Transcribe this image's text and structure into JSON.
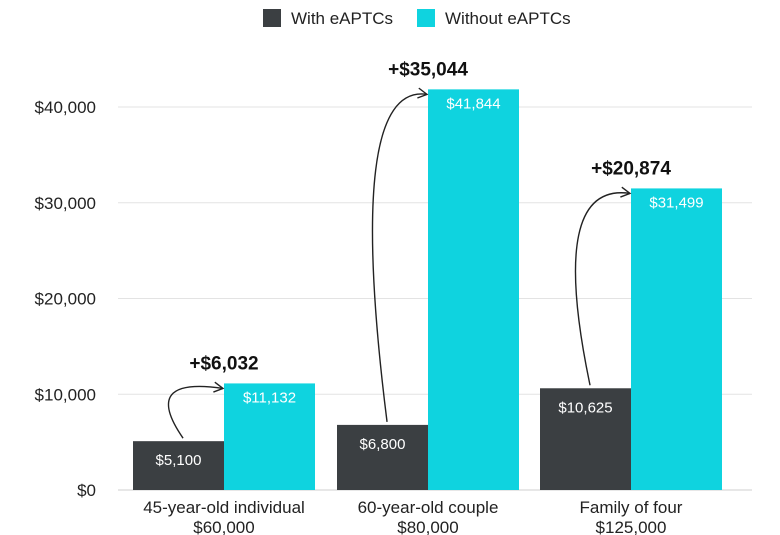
{
  "chart_data": {
    "type": "bar",
    "categories": [
      [
        "45-year-old individual",
        "$60,000"
      ],
      [
        "60-year-old couple",
        "$80,000"
      ],
      [
        "Family of four",
        "$125,000"
      ]
    ],
    "series": [
      {
        "name": "With eAPTCs",
        "color": "#3b3f42",
        "values": [
          5100,
          6800,
          10625
        ],
        "labels": [
          "$5,100",
          "$6,800",
          "$10,625"
        ]
      },
      {
        "name": "Without eAPTCs",
        "color": "#0fd3df",
        "values": [
          11132,
          41844,
          31499
        ],
        "labels": [
          "$11,132",
          "$41,844",
          "$31,499"
        ]
      }
    ],
    "differences": [
      "+$6,032",
      "+$35,044",
      "+$20,874"
    ],
    "yticks": [
      {
        "value": 0,
        "label": "$0"
      },
      {
        "value": 10000,
        "label": "$10,000"
      },
      {
        "value": 20000,
        "label": "$20,000"
      },
      {
        "value": 30000,
        "label": "$30,000"
      },
      {
        "value": 40000,
        "label": "$40,000"
      }
    ],
    "ylim": [
      0,
      47000
    ],
    "grid": true,
    "legend": "top-center"
  }
}
